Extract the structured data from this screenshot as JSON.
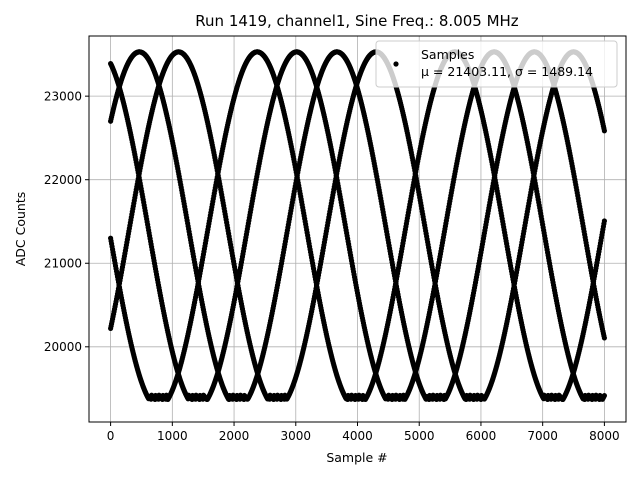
{
  "chart_data": {
    "type": "scatter",
    "title": "Run 1419, channel1, Sine Freq.: 8.005 MHz",
    "xlabel": "Sample #",
    "ylabel": "ADC Counts",
    "xlim": [
      -350,
      8350
    ],
    "ylim": [
      19100,
      23720
    ],
    "xticks": [
      0,
      1000,
      2000,
      3000,
      4000,
      5000,
      6000,
      7000,
      8000
    ],
    "yticks": [
      20000,
      21000,
      22000,
      23000
    ],
    "grid": true,
    "legend": {
      "placement": "upper-right",
      "title": "Samples",
      "stats": "μ = 21403.11, σ = 1489.14"
    },
    "colors": {
      "marker": "#000000",
      "grid": "#b0b0b0",
      "axes": "#000000"
    },
    "series": [
      {
        "name": "Samples",
        "description_of_shape": "aliased sampled sine, 4 interleaved phase tracks, clipped near 19370",
        "mean": 21403.11,
        "std": 1489.14,
        "clip_min": 19370,
        "max": 23530,
        "x_range": [
          0,
          8000
        ],
        "tracks": [
          {
            "start_value": 23390,
            "period_samples": 3200,
            "phase_start": "descending"
          },
          {
            "start_value": 22700,
            "period_samples": 3200,
            "phase_start": "ascending"
          },
          {
            "start_value": 21300,
            "period_samples": 3200,
            "phase_start": "descending"
          },
          {
            "start_value": 20220,
            "period_samples": 3200,
            "phase_start": "ascending"
          }
        ]
      }
    ]
  }
}
